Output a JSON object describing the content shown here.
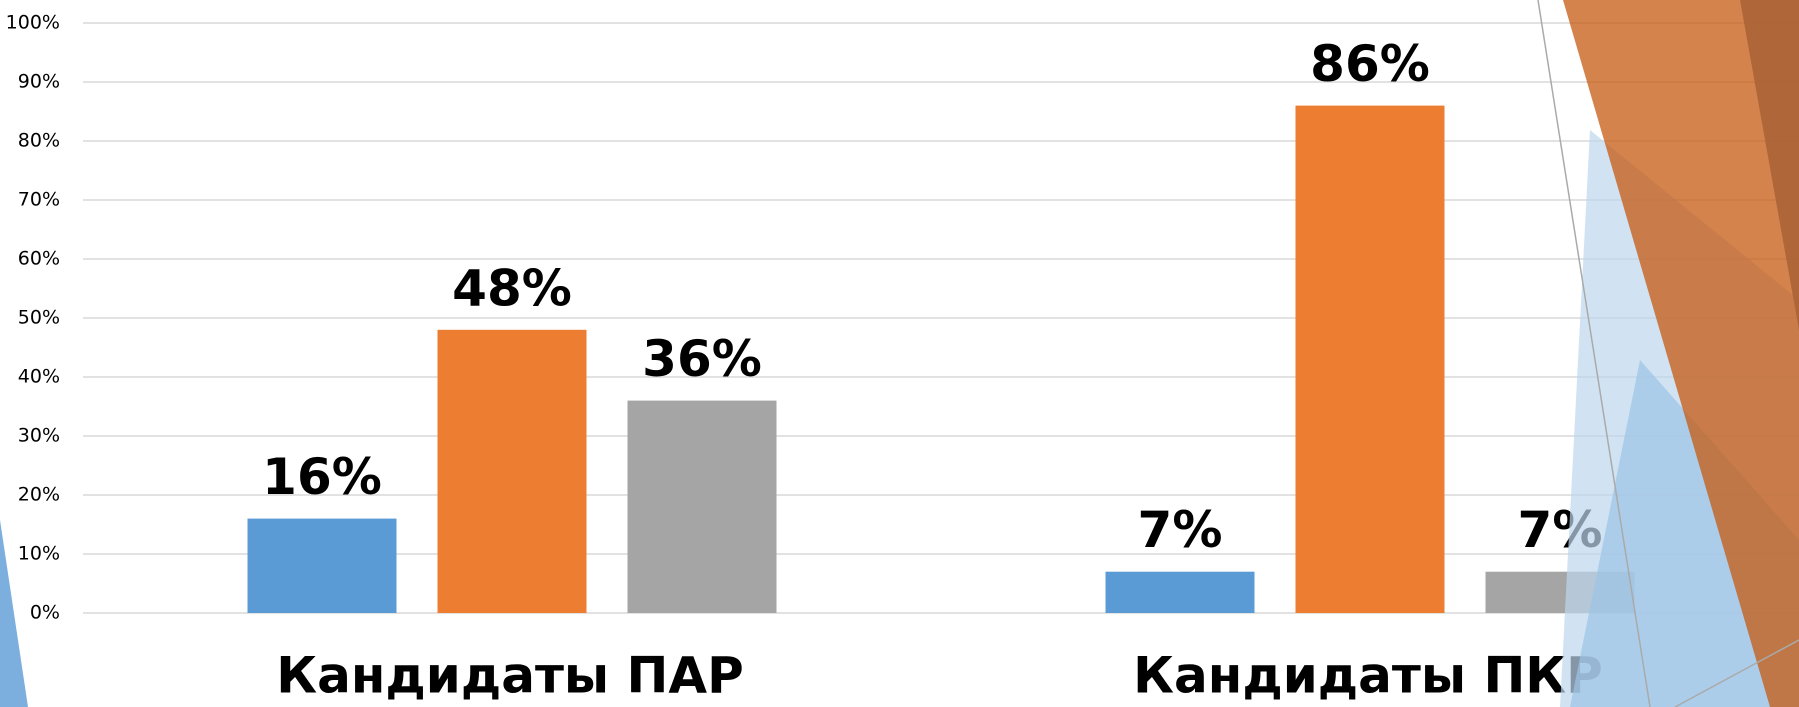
{
  "chart_data": {
    "type": "bar",
    "categories": [
      "Кандидаты ПАР",
      "Кандидаты ПКР"
    ],
    "series": [
      {
        "color": "#5b9bd5",
        "values": [
          16,
          7
        ],
        "value_labels": [
          "16%",
          "7%"
        ]
      },
      {
        "color": "#ed7d31",
        "values": [
          48,
          86
        ],
        "value_labels": [
          "48%",
          "86%"
        ]
      },
      {
        "color": "#a5a5a5",
        "values": [
          36,
          7
        ],
        "value_labels": [
          "36%",
          "7%"
        ]
      }
    ],
    "ylim": [
      0,
      100
    ],
    "yticks": [
      {
        "value": 0,
        "label": "0%"
      },
      {
        "value": 10,
        "label": "10%"
      },
      {
        "value": 20,
        "label": "20%"
      },
      {
        "value": 30,
        "label": "30%"
      },
      {
        "value": 40,
        "label": "40%"
      },
      {
        "value": 50,
        "label": "50%"
      },
      {
        "value": 60,
        "label": "60%"
      },
      {
        "value": 70,
        "label": "70%"
      },
      {
        "value": 80,
        "label": "80%"
      },
      {
        "value": 90,
        "label": "90%"
      },
      {
        "value": 100,
        "label": "100%"
      }
    ],
    "grid": true
  }
}
